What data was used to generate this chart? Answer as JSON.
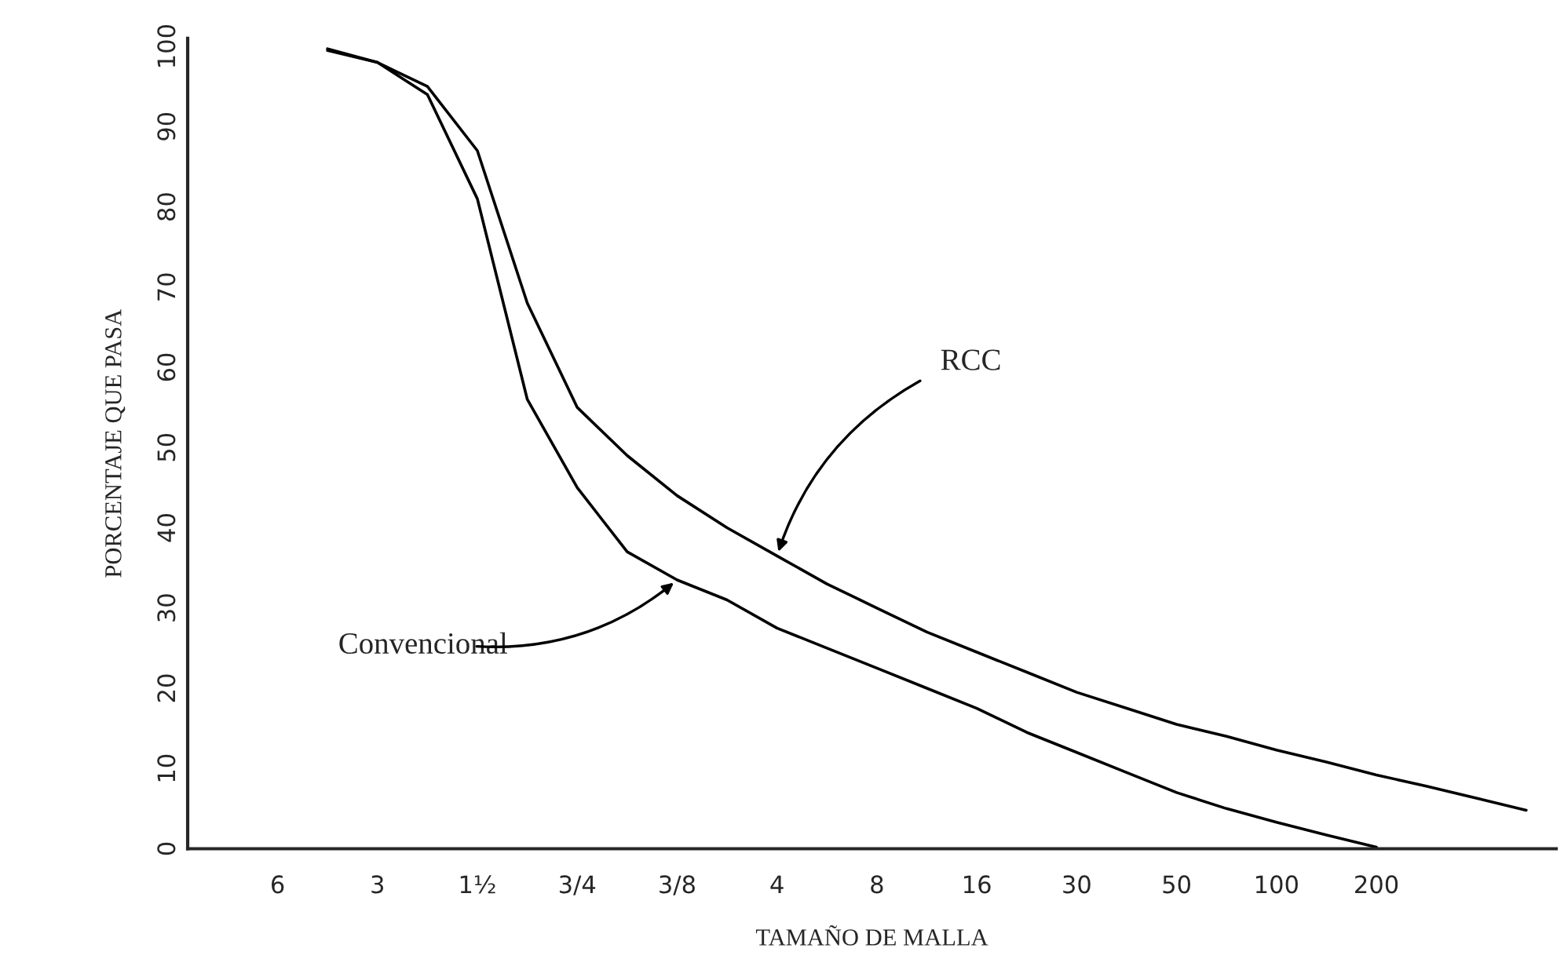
{
  "chart_data": {
    "type": "line",
    "xlabel": "TAMAÑO DE MALLA",
    "ylabel": "PORCENTAJE QUE PASA",
    "categories": [
      "6",
      null,
      "3",
      null,
      "1½",
      null,
      "3/4",
      null,
      "3/8",
      null,
      "4",
      null,
      "8",
      null,
      "16",
      null,
      "30",
      null,
      "50",
      null,
      "100",
      null,
      "200",
      null,
      null,
      null
    ],
    "ylim": [
      0,
      101
    ],
    "yticks": [
      0,
      10,
      20,
      30,
      40,
      50,
      60,
      70,
      80,
      90,
      100
    ],
    "grid": false,
    "legend": false,
    "marker": "none",
    "line_style": "solid",
    "series": [
      {
        "color": "#000000",
        "values": [
          null,
          99.5,
          98,
          94,
          81,
          56,
          45,
          37,
          33.5,
          31,
          27.5,
          25,
          22.5,
          20,
          17.5,
          14.5,
          12,
          9.5,
          7,
          5,
          3.3,
          1.7,
          0.2,
          null,
          null,
          null
        ]
      },
      {
        "color": "#000000",
        "values": [
          null,
          99.7,
          98,
          95,
          87,
          68,
          55,
          49,
          44,
          40,
          36.5,
          33,
          30,
          27,
          24.5,
          22,
          19.5,
          17.5,
          15.5,
          14,
          12.3,
          10.8,
          9.2,
          7.8,
          6.3,
          4.8
        ]
      }
    ],
    "annotations": [
      {
        "text": "RCC",
        "x": "4",
        "y": 36.5
      },
      {
        "text": "Convencional",
        "x": "3/8",
        "y": 33.5
      }
    ]
  }
}
